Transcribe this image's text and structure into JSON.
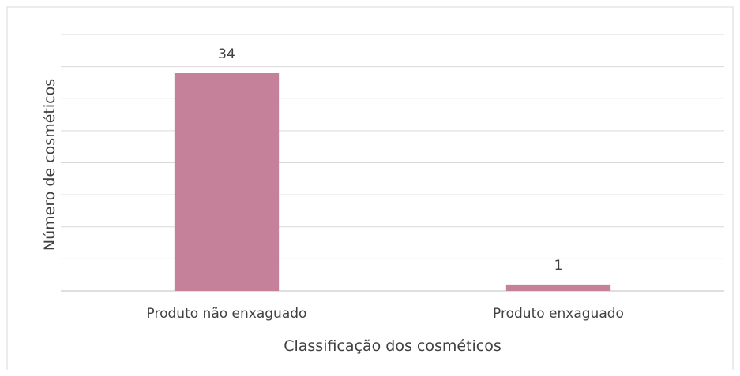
{
  "chart_data": {
    "type": "bar",
    "categories": [
      "Produto não enxaguado",
      "Produto enxaguado"
    ],
    "values": [
      34,
      1
    ],
    "data_labels": [
      "34",
      "1"
    ],
    "title": "",
    "xlabel": "Classificação dos cosméticos",
    "ylabel": "Número de cosméticos",
    "ylim": [
      0,
      40
    ],
    "ytick_step": 5,
    "ytick_labels_visible": false,
    "grid": true,
    "legend": "none",
    "bar_color": "#c5809a"
  }
}
